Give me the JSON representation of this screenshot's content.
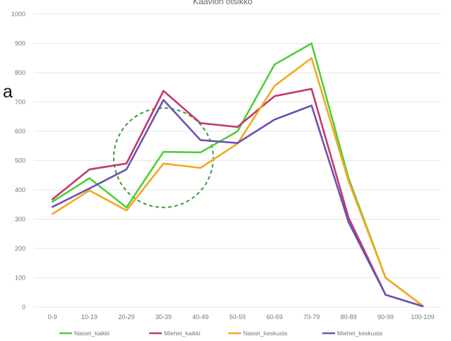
{
  "stray_text": "a",
  "chart_data": {
    "type": "line",
    "title": "Kaavion otsikko",
    "xlabel": "",
    "ylabel": "",
    "categories": [
      "0-9",
      "10-19",
      "20-29",
      "30-39",
      "40-49",
      "50-59",
      "60-69",
      "70-79",
      "80-89",
      "90-99",
      "100-109"
    ],
    "ylim": [
      0,
      1000
    ],
    "yticks": [
      0,
      100,
      200,
      300,
      400,
      500,
      600,
      700,
      800,
      900,
      1000
    ],
    "grid": true,
    "legend_position": "bottom",
    "series": [
      {
        "name": "Naiset_kaikki",
        "color": "#4fce3a",
        "values": [
          360,
          440,
          340,
          530,
          528,
          600,
          828,
          900,
          440,
          100,
          5
        ]
      },
      {
        "name": "Miehet_kaikki",
        "color": "#c2386e",
        "values": [
          368,
          470,
          490,
          738,
          628,
          615,
          720,
          745,
          305,
          42,
          3
        ]
      },
      {
        "name": "Naiset_keskusta",
        "color": "#f5a623",
        "values": [
          318,
          398,
          330,
          490,
          475,
          558,
          755,
          850,
          430,
          100,
          5
        ]
      },
      {
        "name": "Miehet_keskusta",
        "color": "#6b52b0",
        "values": [
          342,
          405,
          470,
          707,
          570,
          560,
          640,
          688,
          290,
          42,
          3
        ]
      }
    ],
    "annotation": {
      "shape": "dashed-circle",
      "color": "#3a9a3a",
      "covers_categories": [
        "20-29",
        "30-39",
        "40-49"
      ]
    }
  }
}
